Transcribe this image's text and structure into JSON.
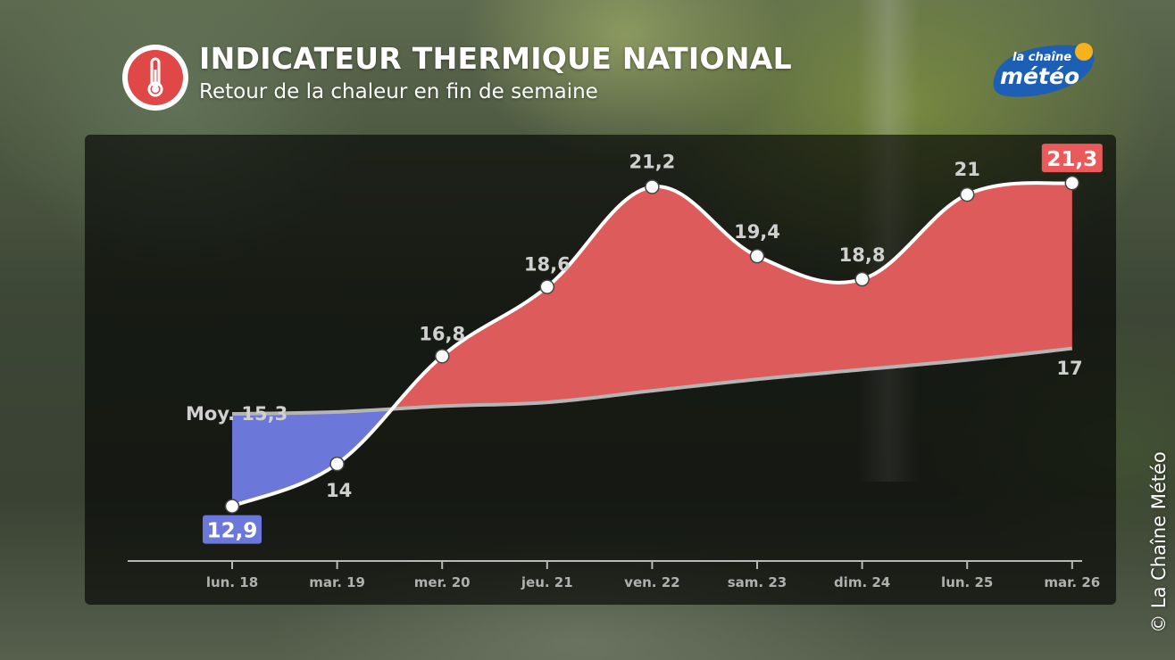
{
  "header": {
    "title": "INDICATEUR THERMIQUE NATIONAL",
    "subtitle": "Retour de la chaleur en fin de semaine",
    "icon": "thermometer-icon"
  },
  "logo": {
    "line1": "la chaîne",
    "line2": "météo"
  },
  "copyright": {
    "symbol": "©",
    "text": "La Chaîne Météo"
  },
  "colors": {
    "above_average": "#de5b5b",
    "below_average": "#6b78da",
    "average_line": "#b5b5b5",
    "icon_red": "#e04848"
  },
  "chart_data": {
    "type": "area",
    "title": "INDICATEUR THERMIQUE NATIONAL",
    "subtitle": "Retour de la chaleur en fin de semaine",
    "categories": [
      "lun. 18",
      "mar. 19",
      "mer. 20",
      "jeu. 21",
      "ven. 22",
      "sam. 23",
      "dim. 24",
      "lun. 25",
      "mar. 26"
    ],
    "series": [
      {
        "values": [
          12.9,
          14,
          16.8,
          18.6,
          21.2,
          19.4,
          18.8,
          21,
          21.3
        ],
        "labels": [
          "12,9",
          "14",
          "16,8",
          "18,6",
          "21,2",
          "19,4",
          "18,8",
          "21",
          "21,3"
        ]
      },
      {
        "values": [
          15.3,
          15.35,
          15.5,
          15.6,
          15.9,
          16.2,
          16.45,
          16.7,
          17
        ],
        "start_label": "Moy. 15,3",
        "end_label": "17"
      }
    ],
    "ylim": [
      11.5,
      22.3
    ],
    "grid": false,
    "xlabel": "",
    "ylabel": ""
  }
}
